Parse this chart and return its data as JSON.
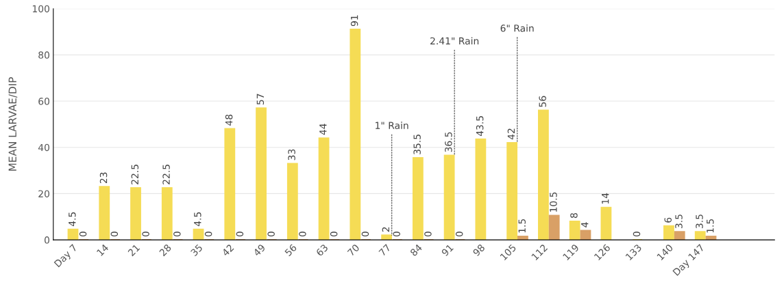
{
  "chart_data": {
    "type": "bar",
    "ylabel": "MEAN LARVAE/DIP",
    "categories": [
      "Day 7",
      "14",
      "21",
      "28",
      "35",
      "42",
      "49",
      "56",
      "63",
      "70",
      "77",
      "84",
      "91",
      "98",
      "105",
      "112",
      "119",
      "126",
      "133",
      "140",
      "Day 147"
    ],
    "series": [
      {
        "color": "#f5dc55",
        "values": [
          4.5,
          23,
          22.5,
          22.5,
          4.5,
          48,
          57,
          33,
          44,
          91,
          2,
          35.5,
          36.5,
          43.5,
          42,
          56,
          8,
          14,
          0,
          6,
          3.5
        ]
      },
      {
        "color": "#d9a066",
        "values": [
          0,
          0,
          0,
          0,
          0,
          0,
          0,
          0,
          0,
          0,
          0,
          0,
          0,
          null,
          1.5,
          10.5,
          4,
          null,
          null,
          3.5,
          1.5
        ]
      }
    ],
    "ylim": [
      0,
      100
    ],
    "yticks": [
      0,
      20,
      40,
      60,
      80,
      100
    ],
    "grid": "y",
    "data_labels": true,
    "legend": false,
    "annotations": [
      {
        "text": "1\" Rain",
        "x": "77",
        "y": 2
      },
      {
        "text": "2.41\" Rain",
        "x": "91",
        "y": 36.5
      },
      {
        "text": "6\" Rain",
        "x": "105",
        "y": 42
      }
    ]
  }
}
